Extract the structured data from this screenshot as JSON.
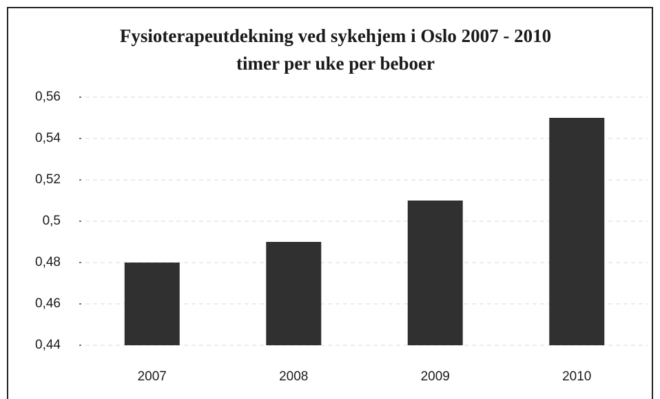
{
  "chart_data": {
    "type": "bar",
    "title": "Fysioterapeutdekning ved sykehjem i Oslo 2007 - 2010",
    "subtitle": "timer per uke per beboer",
    "categories": [
      "2007",
      "2008",
      "2009",
      "2010"
    ],
    "values": [
      0.48,
      0.49,
      0.51,
      0.55
    ],
    "color": "#303030",
    "ylim": [
      0.44,
      0.56
    ],
    "yticks": [
      {
        "value": 0.44,
        "label": "0,44"
      },
      {
        "value": 0.46,
        "label": "0,46"
      },
      {
        "value": 0.48,
        "label": "0,48"
      },
      {
        "value": 0.5,
        "label": "0,5"
      },
      {
        "value": 0.52,
        "label": "0,52"
      },
      {
        "value": 0.54,
        "label": "0,54"
      },
      {
        "value": 0.56,
        "label": "0,56"
      }
    ],
    "grid": true
  }
}
